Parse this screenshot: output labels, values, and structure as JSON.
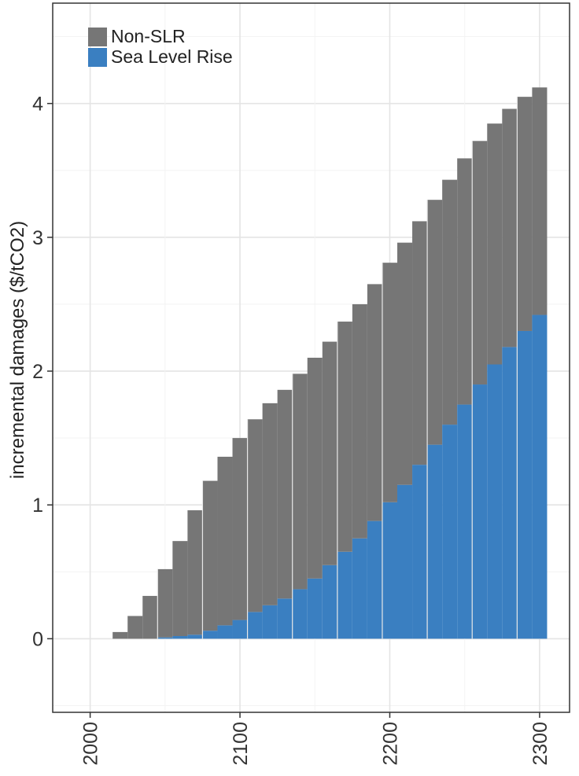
{
  "chart_data": {
    "type": "bar",
    "stacked": true,
    "title": "",
    "xlabel": "",
    "ylabel": "incremental damages ($/tCO2)",
    "xlim": [
      1975,
      2320
    ],
    "ylim": [
      -0.55,
      4.75
    ],
    "x_ticks": [
      "2000",
      "2100",
      "2200",
      "2300"
    ],
    "x_tick_values": [
      2000,
      2100,
      2200,
      2300
    ],
    "y_ticks": [
      "0",
      "1",
      "2",
      "3",
      "4"
    ],
    "y_tick_values": [
      0,
      1,
      2,
      3,
      4
    ],
    "grid": true,
    "legend_position": "top-left",
    "bar_width_years": 10,
    "x": [
      2010,
      2020,
      2030,
      2040,
      2050,
      2060,
      2070,
      2080,
      2090,
      2100,
      2110,
      2120,
      2130,
      2140,
      2150,
      2160,
      2170,
      2180,
      2190,
      2200,
      2210,
      2220,
      2230,
      2240,
      2250,
      2260,
      2270,
      2280,
      2290,
      2300
    ],
    "series": [
      {
        "name": "Sea Level Rise",
        "color": "#3a7fc1",
        "values": [
          0,
          0,
          0,
          0,
          0.01,
          0.02,
          0.03,
          0.06,
          0.1,
          0.14,
          0.2,
          0.25,
          0.3,
          0.37,
          0.45,
          0.55,
          0.65,
          0.75,
          0.88,
          1.02,
          1.15,
          1.3,
          1.45,
          1.6,
          1.75,
          1.9,
          2.05,
          2.18,
          2.3,
          2.42
        ]
      },
      {
        "name": "Non-SLR",
        "color": "#767676",
        "values": [
          0,
          0.05,
          0.17,
          0.32,
          0.51,
          0.71,
          0.93,
          1.12,
          1.26,
          1.36,
          1.44,
          1.51,
          1.56,
          1.61,
          1.65,
          1.67,
          1.72,
          1.75,
          1.77,
          1.79,
          1.81,
          1.82,
          1.83,
          1.83,
          1.84,
          1.82,
          1.8,
          1.78,
          1.75,
          1.7
        ]
      }
    ],
    "legend": [
      {
        "name": "Non-SLR",
        "color": "#767676"
      },
      {
        "name": "Sea Level Rise",
        "color": "#3a7fc1"
      }
    ]
  }
}
